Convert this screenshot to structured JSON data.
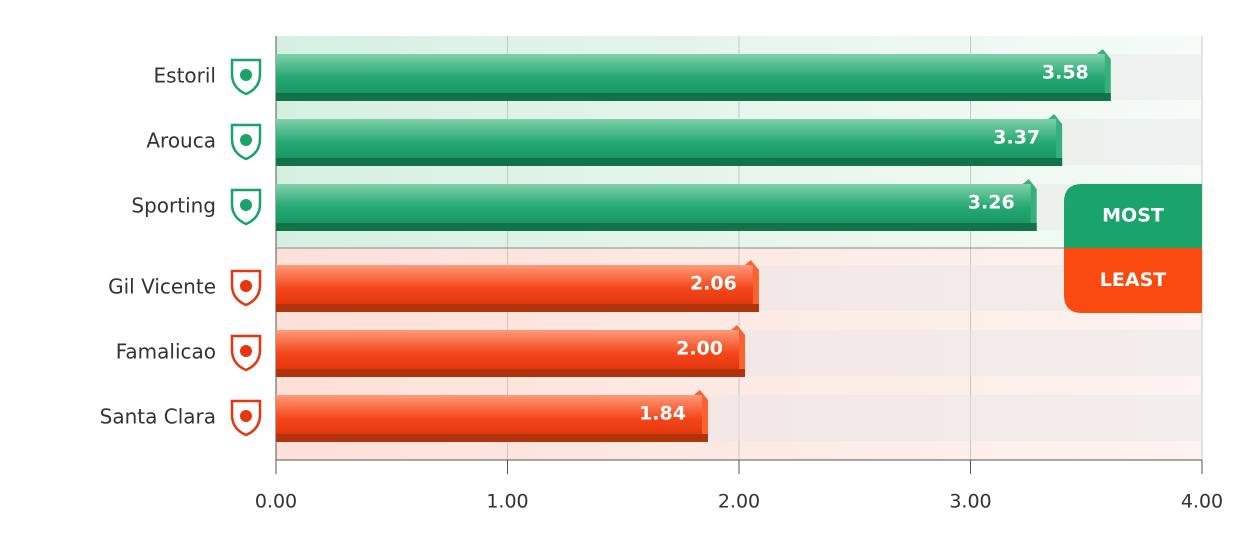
{
  "chart_data": {
    "type": "hbar",
    "categories": [
      "Estoril",
      "Arouca",
      "Sporting",
      "Gil Vicente",
      "Famalicao",
      "Santa Clara"
    ],
    "series": [
      {
        "name": "MOST",
        "color": "#1aa36a",
        "values": [
          3.58,
          3.37,
          3.26,
          null,
          null,
          null
        ],
        "value_labels": [
          "3.58",
          "3.37",
          "3.26",
          null,
          null,
          null
        ]
      },
      {
        "name": "LEAST",
        "color": "#fa4a10",
        "values": [
          null,
          null,
          null,
          2.06,
          2.0,
          1.84
        ],
        "value_labels": [
          null,
          null,
          null,
          "2.06",
          "2.00",
          "1.84"
        ]
      }
    ],
    "xlim": [
      0,
      4
    ],
    "xticks": [
      {
        "value": 0,
        "label": "0.00"
      },
      {
        "value": 1,
        "label": "1.00"
      },
      {
        "value": 2,
        "label": "2.00"
      },
      {
        "value": 3,
        "label": "3.00"
      },
      {
        "value": 4,
        "label": "4.00"
      }
    ],
    "grid": true
  }
}
